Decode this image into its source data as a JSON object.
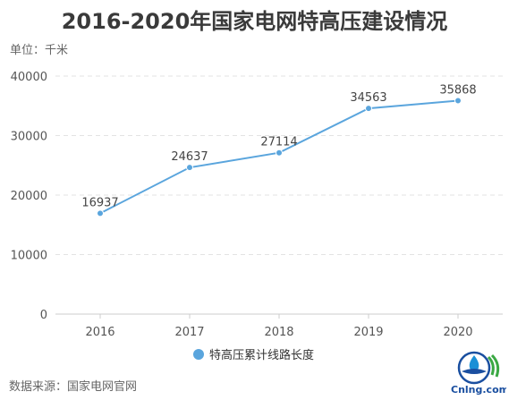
{
  "chart_data": {
    "type": "line",
    "title": "2016-2020年国家电网特高压建设情况",
    "unit_label": "单位：千米",
    "categories": [
      "2016",
      "2017",
      "2018",
      "2019",
      "2020"
    ],
    "series": [
      {
        "name": "特高压累计线路长度",
        "values": [
          16937,
          24637,
          27114,
          34563,
          35868
        ],
        "color": "#5aa5dd"
      }
    ],
    "ylim": [
      0,
      40000
    ],
    "yticks": [
      "0",
      "10000",
      "20000",
      "30000",
      "40000"
    ],
    "grid": true,
    "legend": "bottom-center"
  },
  "footer": {
    "source": "数据来源：国家电网官网"
  },
  "logo": {
    "text": "Cnlng.com",
    "icon": "cnlng-logo-icon"
  }
}
